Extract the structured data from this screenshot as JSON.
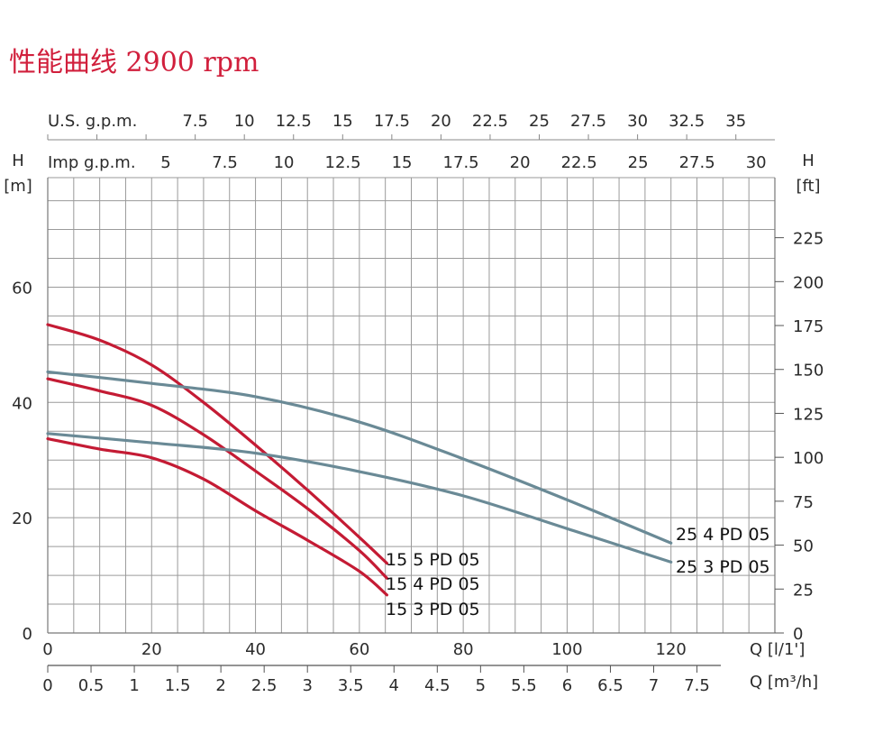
{
  "title": "性能曲线 2900 rpm",
  "colors": {
    "red": "#c41b34",
    "gray": "#6a8a96",
    "grid": "#9a9a9a",
    "title": "#d11f3c"
  },
  "chart_data": {
    "type": "line",
    "x_axis_main": {
      "label": "Q [l/1']",
      "range": [
        0,
        140
      ],
      "ticks": [
        0,
        20,
        40,
        60,
        80,
        100,
        120
      ],
      "tick_labels": [
        "0",
        "20",
        "40",
        "60",
        "80",
        "100",
        "120"
      ]
    },
    "x_axis_m3h": {
      "label": "Q [m³/h]",
      "ticks": [
        0,
        0.5,
        1,
        1.5,
        2,
        2.5,
        3,
        3.5,
        4,
        4.5,
        5,
        5.5,
        6,
        6.5,
        7,
        7.5
      ],
      "tick_labels": [
        "0",
        "0.5",
        "1",
        "1.5",
        "2",
        "2.5",
        "3",
        "3.5",
        "4",
        "4.5",
        "5",
        "5.5",
        "6",
        "6.5",
        "7",
        "7.5"
      ]
    },
    "x_axis_usgpm": {
      "label": "U.S. g.p.m.",
      "ticks": [
        7.5,
        10,
        12.5,
        15,
        17.5,
        20,
        22.5,
        25,
        27.5,
        30,
        32.5,
        35
      ],
      "tick_labels": [
        "7.5",
        "10",
        "12.5",
        "15",
        "17.5",
        "20",
        "22.5",
        "25",
        "27.5",
        "30",
        "32.5",
        "35"
      ]
    },
    "x_axis_impgpm": {
      "label": "Imp g.p.m.",
      "ticks": [
        5,
        7.5,
        10,
        12.5,
        15,
        17.5,
        20,
        22.5,
        25,
        27.5,
        30
      ],
      "tick_labels": [
        "5",
        "7.5",
        "10",
        "12.5",
        "15",
        "17.5",
        "20",
        "22.5",
        "25",
        "27.5",
        "30"
      ]
    },
    "y_axis_m": {
      "label_top": "H",
      "label_unit": "[m]",
      "range": [
        0,
        79
      ],
      "ticks": [
        0,
        20,
        40,
        60
      ],
      "tick_labels": [
        "0",
        "20",
        "40",
        "60"
      ]
    },
    "y_axis_ft": {
      "label_top": "H",
      "label_unit": "[ft]",
      "ticks": [
        0,
        25,
        50,
        75,
        100,
        125,
        150,
        175,
        200,
        225
      ],
      "tick_labels": [
        "0",
        "25",
        "50",
        "75",
        "100",
        "125",
        "150",
        "175",
        "200",
        "225"
      ]
    },
    "series": [
      {
        "name": "15 5 PD 05",
        "color": "#c41b34",
        "x": [
          0,
          10,
          20,
          30,
          40,
          50,
          60,
          65.3
        ],
        "y": [
          53.5,
          50.8,
          46.5,
          40.0,
          32.6,
          24.8,
          16.6,
          12.1
        ]
      },
      {
        "name": "15 4 PD 05",
        "color": "#c41b34",
        "x": [
          0,
          10,
          20,
          30,
          40,
          50,
          60,
          65.3
        ],
        "y": [
          44.1,
          42.0,
          39.5,
          34.4,
          28.1,
          21.6,
          14.3,
          9.5
        ]
      },
      {
        "name": "15 3 PD 05",
        "color": "#c41b34",
        "x": [
          0,
          10,
          20,
          30,
          40,
          50,
          60,
          65.3
        ],
        "y": [
          33.7,
          31.9,
          30.4,
          26.7,
          21.2,
          16.1,
          10.7,
          6.6
        ]
      },
      {
        "name": "25 4 PD 05",
        "color": "#6a8a96",
        "x": [
          0,
          20,
          40,
          60,
          80,
          100,
          120
        ],
        "y": [
          45.3,
          43.3,
          41.0,
          36.6,
          30.2,
          23.1,
          15.6
        ]
      },
      {
        "name": "25 3 PD 05",
        "color": "#6a8a96",
        "x": [
          0,
          20,
          40,
          60,
          80,
          100,
          120
        ],
        "y": [
          34.6,
          33.0,
          31.2,
          28.0,
          23.8,
          18.1,
          12.3
        ]
      }
    ]
  }
}
